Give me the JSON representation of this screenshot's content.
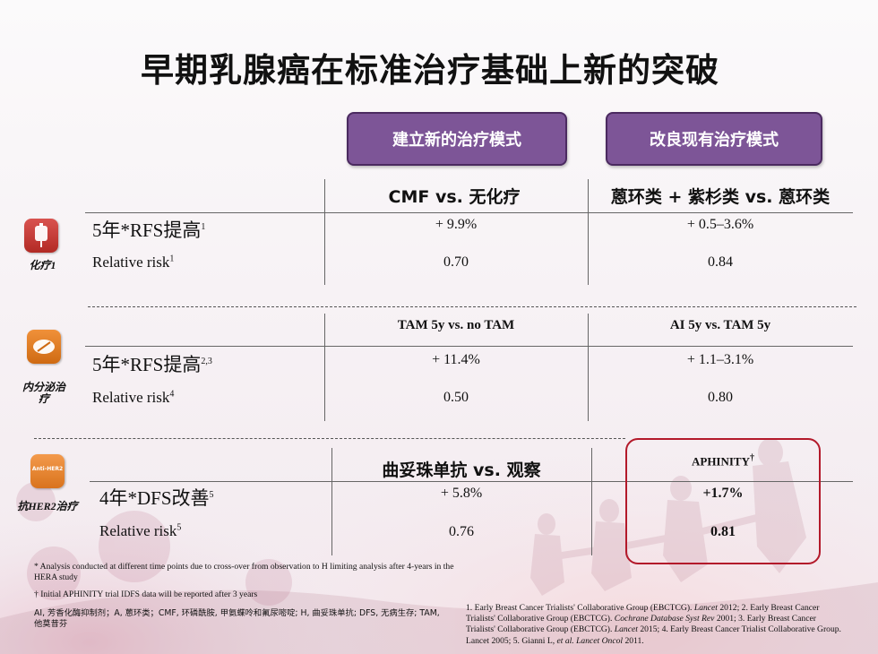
{
  "title": "早期乳腺癌在标准治疗基础上新的突破",
  "modes": {
    "new": "建立新的治疗模式",
    "improve": "改良现有治疗模式"
  },
  "chemo": {
    "category": "化疗1",
    "icon": "iv-bag-icon",
    "col1_header": "CMF vs. 无化疗",
    "col2_header": "蒽环类 + 紫杉类 vs. 蒽环类",
    "row1_label": "5年*RFS提高",
    "row1_sup": "1",
    "row2_label": "Relative risk",
    "row2_sup": "1",
    "col1_row1": "+ 9.9%",
    "col1_row2": "0.70",
    "col2_row1": "+ 0.5–3.6%",
    "col2_row2": "0.84"
  },
  "endocrine": {
    "category": "内分泌治疗",
    "icon": "pill-icon",
    "col1_header": "TAM 5y vs. no TAM",
    "col2_header": "AI 5y vs. TAM 5y",
    "row1_label": "5年*RFS提高",
    "row1_sup": "2,3",
    "row2_label": "Relative risk",
    "row2_sup": "4",
    "col1_row1": "+ 11.4%",
    "col1_row2": "0.50",
    "col2_row1": "+ 1.1–3.1%",
    "col2_row2": "0.80"
  },
  "her2": {
    "category": "抗HER2治疗",
    "icon": "anti-her2-icon",
    "icon_text": "Anti-HER2",
    "col1_header": "曲妥珠单抗 vs. 观察",
    "col2_header": "APHINITY",
    "col2_header_sup": "†",
    "row1_label": "4年*DFS改善",
    "row1_sup": "5",
    "row2_label": "Relative risk",
    "row2_sup": "5",
    "col1_row1": "+ 5.8%",
    "col1_row2": "0.76",
    "col2_row1": "+1.7%",
    "col2_row2": "0.81"
  },
  "footnotes": {
    "asterisk": "* Analysis conducted at different time points due to cross-over from observation to H limiting analysis after 4-years in the HERA study",
    "dagger": "† Initial APHINITY trial IDFS data will be reported after 3 years",
    "abbreviations": "AI, 芳香化酶抑制剂；A, 蒽环类；CMF, 环磷酰胺, 甲氨蝶呤和氟尿嘧啶; H, 曲妥珠单抗; DFS, 无病生存; TAM,他莫昔芬"
  },
  "references": [
    {
      "text": "1. Early Breast Cancer Trialists' Collaborative Group (EBCTCG). ",
      "journal": "Lancet",
      "year": " 2012;  "
    },
    {
      "text": "2. Early Breast Cancer Trialists' Collaborative Group (EBCTCG). ",
      "journal": "Cochrane Database Syst Rev",
      "year": " 2001; "
    },
    {
      "text": "3. Early Breast Cancer Trialists' Collaborative Group (EBCTCG). ",
      "journal": "Lancet",
      "year": " 2015;  "
    },
    {
      "text": "4. Early Breast Cancer Trialist Collaborative Group. Lancet 2005; ",
      "journal": "",
      "year": ""
    },
    {
      "text": "5. Gianni L, ",
      "journal": "et al. Lancet Oncol",
      "year": " 2011."
    }
  ],
  "colors": {
    "button_purple": "#7d5597",
    "highlight_red": "#b3192a",
    "chemo_icon": "#c0392b",
    "endocrine_icon": "#e07b1f",
    "her2_icon": "#e67e22"
  }
}
